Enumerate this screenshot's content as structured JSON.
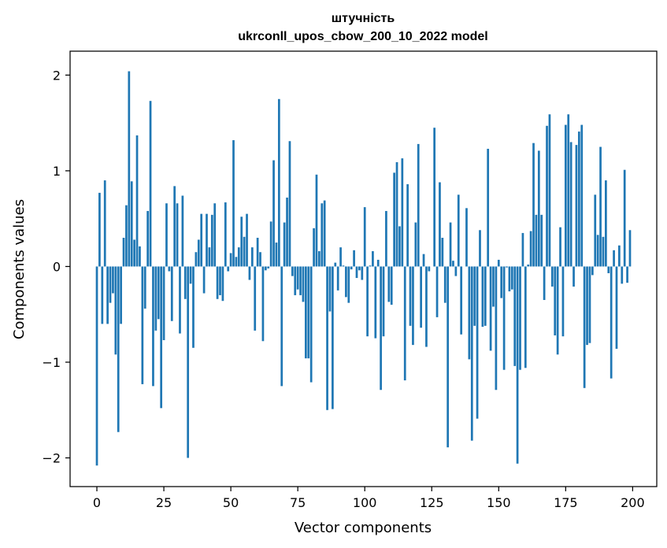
{
  "chart_data": {
    "type": "bar",
    "title_line1": "штучність",
    "title_line2": "ukrconll_upos_cbow_200_10_2022 model",
    "xlabel": "Vector components",
    "ylabel": "Components values",
    "xlim": [
      -10,
      209
    ],
    "ylim": [
      -2.3,
      2.25
    ],
    "x_ticks": [
      0,
      25,
      50,
      75,
      100,
      125,
      150,
      175,
      200
    ],
    "x_tick_labels": [
      "0",
      "25",
      "50",
      "75",
      "100",
      "125",
      "150",
      "175",
      "200"
    ],
    "y_ticks": [
      -2,
      -1,
      0,
      1,
      2
    ],
    "y_tick_labels": [
      "−2",
      "−1",
      "0",
      "1",
      "2"
    ],
    "bar_color": "#1f77b4",
    "x": [
      0,
      1,
      2,
      3,
      4,
      5,
      6,
      7,
      8,
      9,
      10,
      11,
      12,
      13,
      14,
      15,
      16,
      17,
      18,
      19,
      20,
      21,
      22,
      23,
      24,
      25,
      26,
      27,
      28,
      29,
      30,
      31,
      32,
      33,
      34,
      35,
      36,
      37,
      38,
      39,
      40,
      41,
      42,
      43,
      44,
      45,
      46,
      47,
      48,
      49,
      50,
      51,
      52,
      53,
      54,
      55,
      56,
      57,
      58,
      59,
      60,
      61,
      62,
      63,
      64,
      65,
      66,
      67,
      68,
      69,
      70,
      71,
      72,
      73,
      74,
      75,
      76,
      77,
      78,
      79,
      80,
      81,
      82,
      83,
      84,
      85,
      86,
      87,
      88,
      89,
      90,
      91,
      92,
      93,
      94,
      95,
      96,
      97,
      98,
      99,
      100,
      101,
      102,
      103,
      104,
      105,
      106,
      107,
      108,
      109,
      110,
      111,
      112,
      113,
      114,
      115,
      116,
      117,
      118,
      119,
      120,
      121,
      122,
      123,
      124,
      125,
      126,
      127,
      128,
      129,
      130,
      131,
      132,
      133,
      134,
      135,
      136,
      137,
      138,
      139,
      140,
      141,
      142,
      143,
      144,
      145,
      146,
      147,
      148,
      149,
      150,
      151,
      152,
      153,
      154,
      155,
      156,
      157,
      158,
      159,
      160,
      161,
      162,
      163,
      164,
      165,
      166,
      167,
      168,
      169,
      170,
      171,
      172,
      173,
      174,
      175,
      176,
      177,
      178,
      179,
      180,
      181,
      182,
      183,
      184,
      185,
      186,
      187,
      188,
      189,
      190,
      191,
      192,
      193,
      194,
      195,
      196,
      197,
      198,
      199
    ],
    "values": [
      -2.08,
      0.77,
      -0.6,
      0.9,
      -0.6,
      -0.38,
      -0.28,
      -0.92,
      -1.73,
      -0.6,
      0.3,
      0.64,
      2.04,
      0.89,
      0.28,
      1.37,
      0.21,
      -1.23,
      -0.44,
      0.58,
      1.73,
      -1.25,
      -0.67,
      -0.55,
      -1.48,
      -0.77,
      0.66,
      -0.05,
      -0.57,
      0.84,
      0.66,
      -0.7,
      0.74,
      -0.34,
      -2.0,
      -0.18,
      -0.85,
      0.15,
      0.28,
      0.55,
      -0.28,
      0.55,
      0.2,
      0.54,
      0.66,
      -0.34,
      -0.3,
      -0.36,
      0.67,
      -0.05,
      0.14,
      1.32,
      0.1,
      0.2,
      0.52,
      0.31,
      0.55,
      -0.14,
      0.2,
      -0.67,
      0.3,
      0.15,
      -0.78,
      -0.04,
      -0.02,
      0.47,
      1.11,
      0.25,
      1.75,
      -1.25,
      0.46,
      0.72,
      1.31,
      -0.1,
      -0.3,
      -0.24,
      -0.3,
      -0.37,
      -0.96,
      -0.96,
      -1.21,
      0.4,
      0.96,
      0.16,
      0.66,
      0.69,
      -1.5,
      -0.47,
      -1.49,
      0.04,
      -0.25,
      0.2,
      0.01,
      -0.32,
      -0.38,
      -0.03,
      0.17,
      -0.12,
      -0.04,
      -0.14,
      0.62,
      -0.73,
      0.01,
      0.16,
      -0.75,
      0.07,
      -1.29,
      -0.73,
      0.58,
      -0.37,
      -0.4,
      0.98,
      1.09,
      0.42,
      1.13,
      -1.19,
      0.86,
      -0.62,
      -0.82,
      0.46,
      1.28,
      -0.64,
      0.13,
      -0.84,
      -0.05,
      0.0,
      1.45,
      -0.53,
      0.88,
      0.3,
      -0.38,
      -1.89,
      0.46,
      0.06,
      -0.1,
      0.75,
      -0.71,
      0.0,
      0.61,
      -0.97,
      -1.82,
      -0.62,
      -1.59,
      0.38,
      -0.63,
      -0.62,
      1.23,
      -0.88,
      -0.42,
      -1.29,
      0.07,
      -0.33,
      -1.08,
      -0.01,
      -0.26,
      -0.24,
      -1.04,
      -2.06,
      -1.08,
      0.35,
      -1.06,
      0.02,
      0.37,
      1.29,
      0.54,
      1.21,
      0.54,
      -0.35,
      1.47,
      1.59,
      -0.21,
      -0.72,
      -0.92,
      0.41,
      -0.73,
      1.48,
      1.59,
      1.3,
      -0.21,
      1.27,
      1.41,
      1.48,
      -1.27,
      -0.82,
      -0.8,
      -0.09,
      0.75,
      0.33,
      1.25,
      0.31,
      0.9,
      -0.07,
      -1.17,
      0.17,
      -0.86,
      0.22,
      -0.18,
      1.01,
      -0.17,
      0.38
    ]
  }
}
